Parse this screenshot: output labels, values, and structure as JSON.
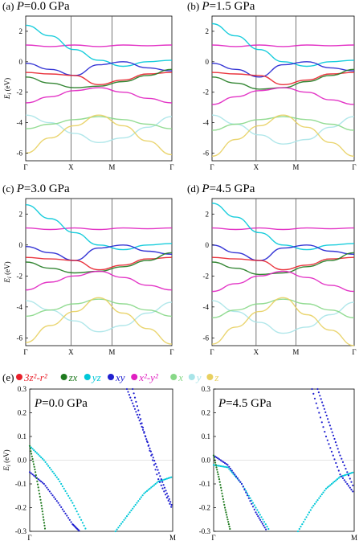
{
  "figure": {
    "top_panels": [
      {
        "label": "(a)",
        "pressure_prefix": "P",
        "pressure_value": "=0.0 GPa"
      },
      {
        "label": "(b)",
        "pressure_prefix": "P",
        "pressure_value": "=1.5 GPa"
      },
      {
        "label": "(c)",
        "pressure_prefix": "P",
        "pressure_value": "=3.0 GPa"
      },
      {
        "label": "(d)",
        "pressure_prefix": "P",
        "pressure_value": "=4.5 GPa"
      }
    ],
    "kpath_labels": [
      "Γ",
      "X",
      "M",
      "Γ"
    ],
    "bottom_label": "(e)",
    "bottom_panels": [
      {
        "pressure_prefix": "P",
        "pressure_value": "=0.0 GPa"
      },
      {
        "pressure_prefix": "P",
        "pressure_value": "=4.5 GPa"
      }
    ],
    "bottom_kpath_labels": [
      "Γ",
      "M"
    ],
    "legend": [
      {
        "label": "3z²-r²",
        "color": "#e8202a"
      },
      {
        "label": "zx",
        "color": "#1f7a1f"
      },
      {
        "label": "yz",
        "color": "#00c8d8"
      },
      {
        "label": "xy",
        "color": "#2020d0"
      },
      {
        "label": "x²-y²",
        "color": "#e020c0"
      },
      {
        "label": "x",
        "color": "#88d888"
      },
      {
        "label": "y",
        "color": "#a8e4e8"
      },
      {
        "label": "z",
        "color": "#e8d060"
      }
    ]
  },
  "chart_data": [
    {
      "type": "line",
      "panel": "(a)",
      "ylabel": "E_i (eV)",
      "ylim": [
        -6.5,
        3.0
      ],
      "yticks": [
        2,
        0,
        -2,
        -4,
        -6
      ],
      "xticks": [
        "Γ",
        "X",
        "M",
        "Γ"
      ],
      "series": [
        {
          "orbital": "x²-y²",
          "color": "#e020c0",
          "values": [
            1.1,
            1.0,
            1.1,
            1.0,
            1.1,
            1.05,
            1.1
          ]
        },
        {
          "orbital": "yz",
          "color": "#00c8d8",
          "values": [
            2.4,
            1.7,
            0.8,
            0.1,
            -0.3,
            0.0,
            0.1
          ]
        },
        {
          "orbital": "xy",
          "color": "#2020d0",
          "values": [
            -0.1,
            -0.5,
            -0.9,
            -0.2,
            0.0,
            -0.4,
            -0.6
          ]
        },
        {
          "orbital": "3z²-r²",
          "color": "#e8202a",
          "values": [
            -0.7,
            -0.8,
            -0.9,
            -1.5,
            -1.2,
            -0.8,
            -0.7
          ]
        },
        {
          "orbital": "zx",
          "color": "#1f7a1f",
          "values": [
            -1.0,
            -1.4,
            -1.7,
            -1.6,
            -1.3,
            -0.9,
            -0.5
          ]
        },
        {
          "orbital": "x²-y²",
          "color": "#e020c0",
          "values": [
            -2.7,
            -2.3,
            -1.9,
            -1.7,
            -2.0,
            -2.4,
            -2.7
          ]
        },
        {
          "orbital": "y",
          "color": "#a8e4e8",
          "values": [
            -3.5,
            -4.0,
            -4.7,
            -5.3,
            -5.0,
            -4.3,
            -3.6
          ]
        },
        {
          "orbital": "x",
          "color": "#88d888",
          "values": [
            -4.4,
            -4.1,
            -3.8,
            -3.6,
            -3.8,
            -4.1,
            -4.4
          ]
        },
        {
          "orbital": "z",
          "color": "#e8d060",
          "values": [
            -6.0,
            -5.0,
            -4.2,
            -3.5,
            -4.2,
            -5.2,
            -6.1
          ]
        }
      ]
    },
    {
      "type": "line",
      "panel": "(b)",
      "ylim": [
        -6.5,
        3.0
      ],
      "yticks": [
        2,
        0,
        -2,
        -4,
        -6
      ],
      "xticks": [
        "Γ",
        "X",
        "M",
        "Γ"
      ],
      "series": [
        {
          "orbital": "x²-y²",
          "color": "#e020c0",
          "values": [
            1.1,
            1.0,
            1.1,
            1.0,
            1.1,
            1.05,
            1.1
          ]
        },
        {
          "orbital": "yz",
          "color": "#00c8d8",
          "values": [
            2.5,
            1.7,
            0.8,
            0.0,
            -0.3,
            0.0,
            0.1
          ]
        },
        {
          "orbital": "xy",
          "color": "#2020d0",
          "values": [
            -0.1,
            -0.5,
            -1.0,
            -0.2,
            0.0,
            -0.4,
            -0.6
          ]
        },
        {
          "orbital": "3z²-r²",
          "color": "#e8202a",
          "values": [
            -0.7,
            -0.8,
            -0.9,
            -1.5,
            -1.2,
            -0.8,
            -0.7
          ]
        },
        {
          "orbital": "zx",
          "color": "#1f7a1f",
          "values": [
            -1.0,
            -1.4,
            -1.8,
            -1.7,
            -1.3,
            -0.9,
            -0.5
          ]
        },
        {
          "orbital": "x²-y²",
          "color": "#e020c0",
          "values": [
            -2.8,
            -2.3,
            -1.9,
            -1.7,
            -2.0,
            -2.5,
            -2.8
          ]
        },
        {
          "orbital": "y",
          "color": "#a8e4e8",
          "values": [
            -3.5,
            -4.1,
            -4.8,
            -5.4,
            -5.1,
            -4.3,
            -3.6
          ]
        },
        {
          "orbital": "x",
          "color": "#88d888",
          "values": [
            -4.5,
            -4.1,
            -3.8,
            -3.6,
            -3.8,
            -4.1,
            -4.5
          ]
        },
        {
          "orbital": "z",
          "color": "#e8d060",
          "values": [
            -6.2,
            -5.1,
            -4.2,
            -3.5,
            -4.3,
            -5.3,
            -6.2
          ]
        }
      ]
    },
    {
      "type": "line",
      "panel": "(c)",
      "ylabel": "E_i (eV)",
      "ylim": [
        -6.5,
        3.0
      ],
      "yticks": [
        2,
        0,
        -2,
        -4,
        -6
      ],
      "xticks": [
        "Γ",
        "X",
        "M",
        "Γ"
      ],
      "series": [
        {
          "orbital": "x²-y²",
          "color": "#e020c0",
          "values": [
            1.1,
            1.0,
            1.1,
            1.0,
            1.1,
            1.05,
            1.1
          ]
        },
        {
          "orbital": "yz",
          "color": "#00c8d8",
          "values": [
            2.6,
            1.7,
            0.8,
            0.0,
            -0.3,
            0.0,
            0.1
          ]
        },
        {
          "orbital": "xy",
          "color": "#2020d0",
          "values": [
            -0.1,
            -0.5,
            -1.0,
            -0.2,
            0.0,
            -0.4,
            -0.6
          ]
        },
        {
          "orbital": "3z²-r²",
          "color": "#e8202a",
          "values": [
            -0.8,
            -0.9,
            -1.0,
            -1.6,
            -1.3,
            -0.9,
            -0.8
          ]
        },
        {
          "orbital": "zx",
          "color": "#1f7a1f",
          "values": [
            -1.1,
            -1.5,
            -1.8,
            -1.7,
            -1.4,
            -1.0,
            -0.5
          ]
        },
        {
          "orbital": "x²-y²",
          "color": "#e020c0",
          "values": [
            -2.9,
            -2.4,
            -2.0,
            -1.7,
            -2.1,
            -2.6,
            -2.9
          ]
        },
        {
          "orbital": "y",
          "color": "#a8e4e8",
          "values": [
            -3.6,
            -4.2,
            -4.9,
            -5.6,
            -5.2,
            -4.4,
            -3.7
          ]
        },
        {
          "orbital": "x",
          "color": "#88d888",
          "values": [
            -4.6,
            -4.2,
            -3.8,
            -3.5,
            -3.8,
            -4.2,
            -4.6
          ]
        },
        {
          "orbital": "z",
          "color": "#e8d060",
          "values": [
            -6.3,
            -5.2,
            -4.3,
            -3.4,
            -4.4,
            -5.4,
            -6.4
          ]
        }
      ]
    },
    {
      "type": "line",
      "panel": "(d)",
      "ylim": [
        -6.5,
        3.0
      ],
      "yticks": [
        2,
        0,
        -2,
        -4,
        -6
      ],
      "xticks": [
        "Γ",
        "X",
        "M",
        "Γ"
      ],
      "series": [
        {
          "orbital": "x²-y²",
          "color": "#e020c0",
          "values": [
            1.1,
            1.0,
            1.1,
            1.0,
            1.1,
            1.05,
            1.1
          ]
        },
        {
          "orbital": "yz",
          "color": "#00c8d8",
          "values": [
            2.7,
            1.8,
            0.8,
            0.0,
            -0.3,
            0.0,
            0.1
          ]
        },
        {
          "orbital": "xy",
          "color": "#2020d0",
          "values": [
            0.0,
            -0.5,
            -1.0,
            -0.2,
            0.0,
            -0.4,
            -0.6
          ]
        },
        {
          "orbital": "3z²-r²",
          "color": "#e8202a",
          "values": [
            -0.8,
            -0.9,
            -1.0,
            -1.6,
            -1.3,
            -0.9,
            -0.8
          ]
        },
        {
          "orbital": "zx",
          "color": "#1f7a1f",
          "values": [
            -1.1,
            -1.5,
            -1.9,
            -1.8,
            -1.4,
            -1.0,
            -0.5
          ]
        },
        {
          "orbital": "x²-y²",
          "color": "#e020c0",
          "values": [
            -3.0,
            -2.5,
            -2.0,
            -1.7,
            -2.1,
            -2.6,
            -3.0
          ]
        },
        {
          "orbital": "y",
          "color": "#a8e4e8",
          "values": [
            -3.6,
            -4.3,
            -5.0,
            -5.7,
            -5.3,
            -4.5,
            -3.7
          ]
        },
        {
          "orbital": "x",
          "color": "#88d888",
          "values": [
            -4.7,
            -4.2,
            -3.8,
            -3.5,
            -3.8,
            -4.2,
            -4.7
          ]
        },
        {
          "orbital": "z",
          "color": "#e8d060",
          "values": [
            -6.4,
            -5.3,
            -4.3,
            -3.4,
            -4.5,
            -5.5,
            -6.5
          ]
        }
      ]
    },
    {
      "type": "scatter",
      "panel": "(e) left",
      "ylabel": "E_i (eV)",
      "ylim": [
        -0.3,
        0.3
      ],
      "yticks": [
        0.3,
        0.2,
        0.1,
        0.0,
        -0.1,
        -0.2,
        -0.3
      ],
      "xticks": [
        "Γ",
        "M"
      ],
      "series": [
        {
          "orbital": "yz",
          "color": "#00c8d8",
          "x": [
            0.0,
            0.1,
            0.2,
            0.3,
            0.4,
            0.5,
            0.6,
            0.7,
            0.8,
            0.9,
            1.0
          ],
          "values": [
            0.06,
            0.0,
            -0.08,
            -0.18,
            -0.3,
            null,
            -0.3,
            -0.22,
            -0.14,
            -0.09,
            -0.07
          ]
        },
        {
          "orbital": "xy",
          "color": "#2020d0",
          "x": [
            0.0,
            0.1,
            0.2,
            0.3,
            0.35
          ],
          "values": [
            -0.05,
            -0.1,
            -0.18,
            -0.27,
            -0.3
          ]
        },
        {
          "orbital": "xy",
          "color": "#2020d0",
          "x": [
            0.72,
            0.8,
            0.9,
            1.0
          ],
          "values": [
            0.3,
            0.12,
            -0.08,
            -0.21
          ]
        },
        {
          "orbital": "zx",
          "color": "#1f7a1f",
          "x": [
            0.0,
            0.04,
            0.08,
            0.11
          ],
          "values": [
            0.06,
            -0.05,
            -0.18,
            -0.3
          ]
        },
        {
          "orbital": "xy",
          "color": "#2020d0",
          "x": [
            0.68,
            0.76,
            0.84,
            0.92,
            1.0
          ],
          "values": [
            0.3,
            0.18,
            0.05,
            -0.08,
            -0.2
          ]
        }
      ]
    },
    {
      "type": "scatter",
      "panel": "(e) right",
      "ylim": [
        -0.3,
        0.3
      ],
      "yticks": [
        0.3,
        0.2,
        0.1,
        0.0,
        -0.1,
        -0.2,
        -0.3
      ],
      "xticks": [
        "Γ",
        "M"
      ],
      "series": [
        {
          "orbital": "yz",
          "color": "#00c8d8",
          "x": [
            0.0,
            0.1,
            0.2,
            0.3,
            0.4,
            0.5,
            0.6,
            0.7,
            0.8,
            0.9,
            1.0
          ],
          "values": [
            -0.02,
            -0.03,
            -0.1,
            -0.2,
            -0.3,
            null,
            -0.3,
            -0.2,
            -0.12,
            -0.07,
            -0.05
          ]
        },
        {
          "orbital": "xy",
          "color": "#2020d0",
          "x": [
            0.0,
            0.1,
            0.2,
            0.3,
            0.38
          ],
          "values": [
            0.02,
            -0.02,
            -0.1,
            -0.22,
            -0.3
          ]
        },
        {
          "orbital": "xy",
          "color": "#2020d0",
          "x": [
            0.7,
            0.8,
            0.9,
            1.0
          ],
          "values": [
            0.3,
            0.1,
            -0.06,
            -0.14
          ]
        },
        {
          "orbital": "zx",
          "color": "#1f7a1f",
          "x": [
            0.0,
            0.04,
            0.08,
            0.12
          ],
          "values": [
            0.02,
            -0.08,
            -0.2,
            -0.3
          ]
        },
        {
          "orbital": "xy",
          "color": "#2020d0",
          "x": [
            0.74,
            0.82,
            0.9,
            1.0
          ],
          "values": [
            0.3,
            0.16,
            0.02,
            -0.12
          ]
        }
      ]
    }
  ]
}
